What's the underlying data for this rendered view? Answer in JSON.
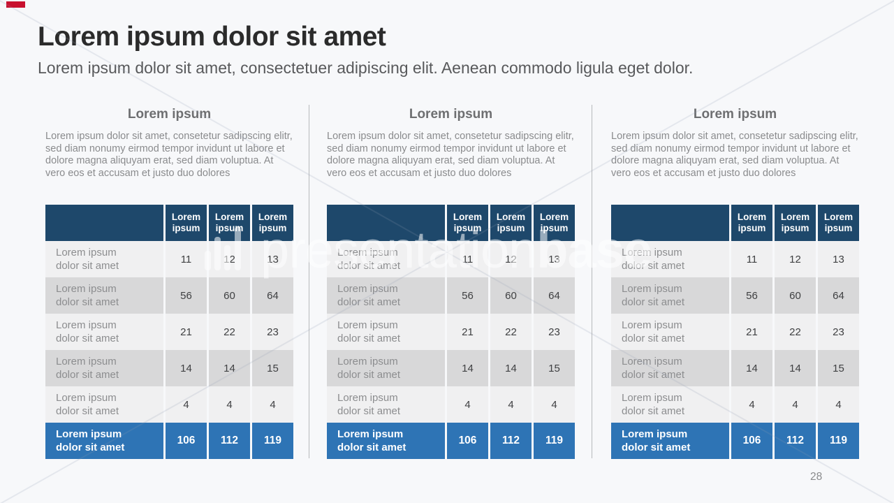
{
  "slide": {
    "title": "Lorem ipsum dolor sit amet",
    "subtitle": "Lorem ipsum dolor sit amet, consectetuer adipiscing elit. Aenean commodo ligula eget dolor.",
    "page_number": "28"
  },
  "watermark": {
    "brand_light": "presentation",
    "brand_bold": "base",
    "icon": "equalizer-bars-icon"
  },
  "sections": [
    {
      "heading": "Lorem ipsum",
      "body": "Lorem ipsum dolor sit amet, consetetur sadipscing elitr, sed diam nonumy eirmod tempor invidunt ut labore et dolore magna aliquyam erat, sed diam voluptua. At vero eos et accusam et justo duo dolores",
      "table": {
        "corner": "",
        "columns": [
          "Lorem ipsum",
          "Lorem ipsum",
          "Lorem ipsum"
        ],
        "rows": [
          {
            "label": "Lorem ipsum dolor sit amet",
            "values": [
              11,
              12,
              13
            ]
          },
          {
            "label": "Lorem ipsum dolor sit amet",
            "values": [
              56,
              60,
              64
            ]
          },
          {
            "label": "Lorem ipsum dolor sit amet",
            "values": [
              21,
              22,
              23
            ]
          },
          {
            "label": "Lorem ipsum dolor sit amet",
            "values": [
              14,
              14,
              15
            ]
          },
          {
            "label": "Lorem ipsum dolor sit amet",
            "values": [
              4,
              4,
              4
            ]
          }
        ],
        "total": {
          "label": "Lorem ipsum dolor sit amet",
          "values": [
            106,
            112,
            119
          ]
        }
      }
    },
    {
      "heading": "Lorem ipsum",
      "body": "Lorem ipsum dolor sit amet, consetetur sadipscing elitr, sed diam nonumy eirmod tempor invidunt ut labore et dolore magna aliquyam erat, sed diam voluptua. At vero eos et accusam et justo duo dolores",
      "table": {
        "corner": "",
        "columns": [
          "Lorem ipsum",
          "Lorem ipsum",
          "Lorem ipsum"
        ],
        "rows": [
          {
            "label": "Lorem ipsum dolor sit amet",
            "values": [
              11,
              12,
              13
            ]
          },
          {
            "label": "Lorem ipsum dolor sit amet",
            "values": [
              56,
              60,
              64
            ]
          },
          {
            "label": "Lorem ipsum dolor sit amet",
            "values": [
              21,
              22,
              23
            ]
          },
          {
            "label": "Lorem ipsum dolor sit amet",
            "values": [
              14,
              14,
              15
            ]
          },
          {
            "label": "Lorem ipsum dolor sit amet",
            "values": [
              4,
              4,
              4
            ]
          }
        ],
        "total": {
          "label": "Lorem ipsum dolor sit amet",
          "values": [
            106,
            112,
            119
          ]
        }
      }
    },
    {
      "heading": "Lorem ipsum",
      "body": "Lorem ipsum dolor sit amet, consetetur sadipscing elitr, sed diam nonumy eirmod tempor invidunt ut labore et dolore magna aliquyam erat, sed diam voluptua. At vero eos et accusam et justo duo dolores",
      "table": {
        "corner": "",
        "columns": [
          "Lorem ipsum",
          "Lorem ipsum",
          "Lorem ipsum"
        ],
        "rows": [
          {
            "label": "Lorem ipsum dolor sit amet",
            "values": [
              11,
              12,
              13
            ]
          },
          {
            "label": "Lorem ipsum dolor sit amet",
            "values": [
              56,
              60,
              64
            ]
          },
          {
            "label": "Lorem ipsum dolor sit amet",
            "values": [
              21,
              22,
              23
            ]
          },
          {
            "label": "Lorem ipsum dolor sit amet",
            "values": [
              14,
              14,
              15
            ]
          },
          {
            "label": "Lorem ipsum dolor sit amet",
            "values": [
              4,
              4,
              4
            ]
          }
        ],
        "total": {
          "label": "Lorem ipsum dolor sit amet",
          "values": [
            106,
            112,
            119
          ]
        }
      }
    }
  ],
  "colors": {
    "bg": "#f7f8fa",
    "navy": "#1e486b",
    "blue": "#2e74b5",
    "row_light": "#f0f0f1",
    "row_dark": "#d8d8d9",
    "title": "#2b2b2b",
    "subtitle": "#58595b",
    "heading": "#6e6f71",
    "body_text": "#8a8b8d",
    "label": "#8c8d8f",
    "number": "#3f4042",
    "divider": "#b7b9bb",
    "page": "#8a8b8d",
    "accent_red": "#c8102e",
    "table_header_text": "#ffffff",
    "total_text": "#ffffff"
  }
}
